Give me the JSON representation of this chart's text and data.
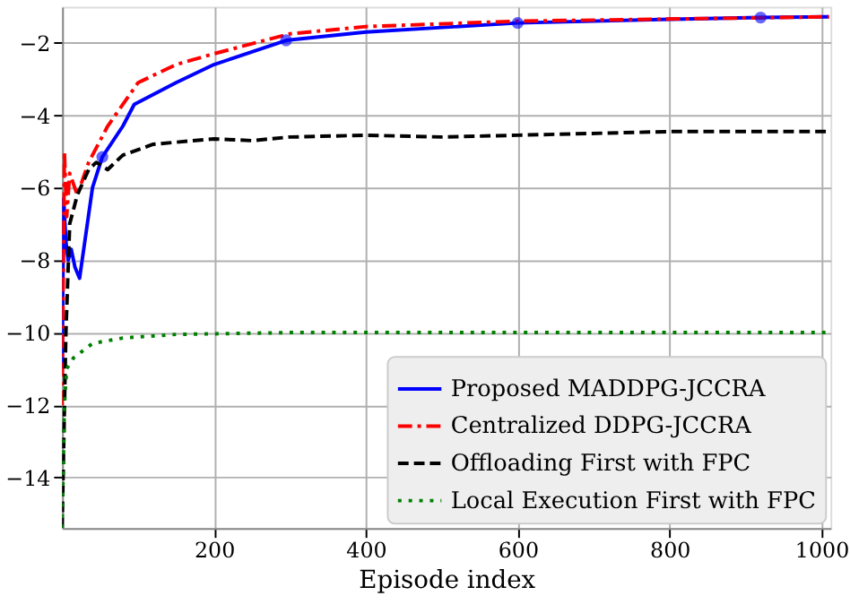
{
  "chart_data": {
    "type": "line",
    "xlabel": "Episode index",
    "xlim": [
      0,
      1012
    ],
    "ylim": [
      -15.4,
      -1.0
    ],
    "xticks": [
      200,
      400,
      600,
      800,
      1000
    ],
    "yticks": [
      -14,
      -12,
      -10,
      -8,
      -6,
      -4,
      -2
    ],
    "grid": true,
    "legend": "bottom right",
    "series": [
      {
        "name": "Proposed MADDPG-JCCRA",
        "color": "#0000ff",
        "line_style": "solid",
        "x": [
          0,
          2,
          5,
          8,
          12,
          17,
          23,
          40,
          53,
          80,
          95,
          150,
          200,
          250,
          295,
          400,
          600,
          800,
          920,
          1010
        ],
        "values": [
          -11,
          -6.3,
          -7.5,
          -8.0,
          -7.7,
          -8.2,
          -8.5,
          -6.0,
          -5.15,
          -4.3,
          -3.7,
          -3.1,
          -2.6,
          -2.25,
          -1.93,
          -1.7,
          -1.45,
          -1.35,
          -1.3,
          -1.28
        ]
      },
      {
        "name": "Centralized DDPG-JCCRA",
        "color": "#ff0000",
        "line_style": "dashdot",
        "x": [
          0,
          3,
          6,
          10,
          20,
          35,
          60,
          100,
          150,
          200,
          300,
          400,
          600,
          1010
        ],
        "values": [
          -12,
          -5.0,
          -6.8,
          -5.6,
          -6.2,
          -5.3,
          -4.3,
          -3.1,
          -2.6,
          -2.3,
          -1.75,
          -1.55,
          -1.4,
          -1.28
        ]
      },
      {
        "name": "Offloading First with FPC",
        "color": "#000000",
        "line_style": "dashed",
        "x": [
          0,
          5,
          10,
          20,
          35,
          45,
          60,
          80,
          120,
          200,
          250,
          300,
          400,
          500,
          600,
          800,
          1010
        ],
        "values": [
          -15.4,
          -10,
          -7,
          -6.2,
          -5.5,
          -5.3,
          -5.5,
          -5.1,
          -4.8,
          -4.65,
          -4.7,
          -4.6,
          -4.55,
          -4.6,
          -4.55,
          -4.45,
          -4.45
        ]
      },
      {
        "name": "Local Execution First with FPC",
        "color": "#008000",
        "line_style": "dotted",
        "x": [
          0,
          3,
          6,
          15,
          40,
          80,
          150,
          300,
          1010
        ],
        "values": [
          -15.4,
          -12,
          -11,
          -10.7,
          -10.3,
          -10.15,
          -10.05,
          -10.0,
          -10.0
        ]
      },
      {
        "type": "scatter",
        "color": "#0000ff",
        "marker": "circle",
        "x": [
          53,
          295,
          600,
          920
        ],
        "values": [
          -5.15,
          -1.93,
          -1.45,
          -1.3
        ]
      }
    ]
  }
}
